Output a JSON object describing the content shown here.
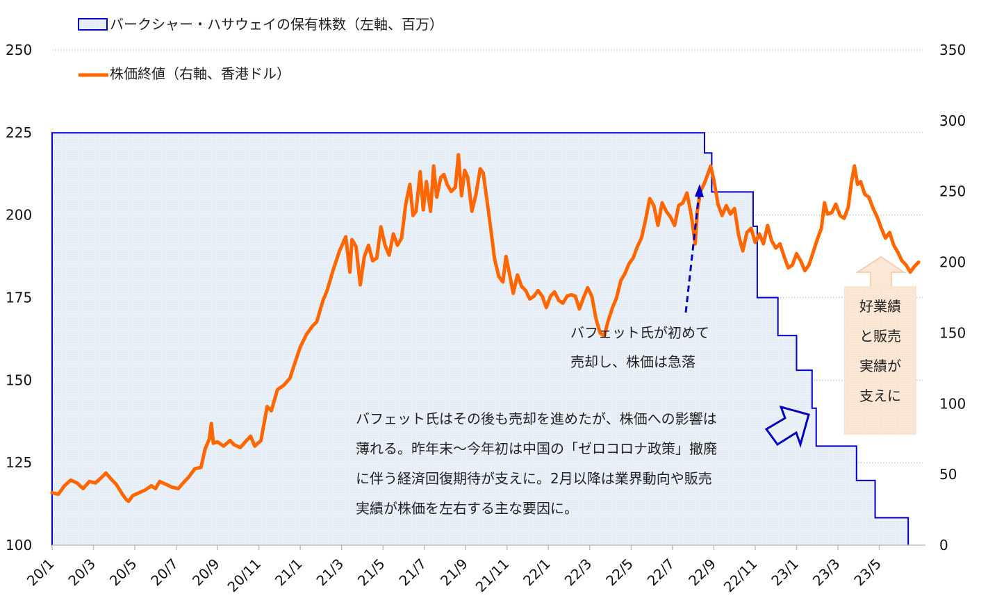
{
  "chart_data": {
    "type": "line",
    "title": "",
    "legend": [
      {
        "label": "バークシャー・ハサウェイの保有株数（左軸、百万）",
        "kind": "area-step",
        "color": "#0000c8",
        "fill": "#e9eef8"
      },
      {
        "label": "株価終値（右軸、香港ドル）",
        "kind": "line",
        "color": "#ff6600"
      }
    ],
    "legend_position": "top-left",
    "x_tick_labels": [
      "20/1",
      "20/3",
      "20/5",
      "20/7",
      "20/9",
      "20/11",
      "21/1",
      "21/3",
      "21/5",
      "21/7",
      "21/9",
      "21/11",
      "22/1",
      "22/3",
      "22/5",
      "22/7",
      "22/9",
      "22/11",
      "23/1",
      "23/3",
      "23/5"
    ],
    "x_unit": "months since 2020/1",
    "x_range": [
      0,
      42.1
    ],
    "left_axis": {
      "label": "保有株数（百万）",
      "range": [
        100,
        250
      ],
      "ticks": [
        100,
        125,
        150,
        175,
        200,
        225,
        250
      ]
    },
    "right_axis": {
      "label": "株価終値（香港ドル）",
      "range": [
        0,
        350
      ],
      "ticks": [
        0,
        50,
        100,
        150,
        200,
        250,
        300,
        350
      ]
    },
    "grid": "horizontal dotted",
    "series": [
      {
        "name": "バークシャー・ハサウェイの保有株数（左軸、百万）",
        "axis": "left",
        "type": "step-area",
        "points": [
          [
            0,
            224.9
          ],
          [
            31.55,
            224.9
          ],
          [
            31.55,
            218.8
          ],
          [
            31.9,
            218.8
          ],
          [
            31.9,
            207.0
          ],
          [
            33.9,
            207.0
          ],
          [
            33.9,
            196.6
          ],
          [
            34.1,
            196.6
          ],
          [
            34.1,
            175.0
          ],
          [
            35.1,
            175.0
          ],
          [
            35.1,
            163.5
          ],
          [
            36.0,
            163.5
          ],
          [
            36.0,
            153.0
          ],
          [
            36.75,
            153.0
          ],
          [
            36.75,
            141.5
          ],
          [
            36.95,
            141.5
          ],
          [
            36.95,
            130.0
          ],
          [
            38.9,
            130.0
          ],
          [
            38.9,
            119.6
          ],
          [
            39.8,
            119.6
          ],
          [
            39.8,
            108.3
          ],
          [
            41.4,
            108.3
          ],
          [
            41.4,
            100.0
          ]
        ]
      },
      {
        "name": "株価終値（右軸、香港ドル）",
        "axis": "right",
        "type": "line",
        "points": [
          [
            0,
            37
          ],
          [
            0.3,
            36
          ],
          [
            0.6,
            42
          ],
          [
            0.9,
            46
          ],
          [
            1.2,
            44
          ],
          [
            1.5,
            40
          ],
          [
            1.8,
            45
          ],
          [
            2.1,
            44
          ],
          [
            2.4,
            48
          ],
          [
            2.6,
            51
          ],
          [
            2.9,
            46
          ],
          [
            3.1,
            43
          ],
          [
            3.4,
            36
          ],
          [
            3.6,
            32
          ],
          [
            3.7,
            31
          ],
          [
            3.9,
            35
          ],
          [
            4.2,
            37
          ],
          [
            4.5,
            39
          ],
          [
            4.8,
            42
          ],
          [
            5.0,
            40
          ],
          [
            5.2,
            45
          ],
          [
            5.5,
            43
          ],
          [
            5.8,
            41
          ],
          [
            6.1,
            40
          ],
          [
            6.4,
            45
          ],
          [
            6.6,
            48
          ],
          [
            6.9,
            54
          ],
          [
            7.2,
            55
          ],
          [
            7.4,
            68
          ],
          [
            7.6,
            75
          ],
          [
            7.7,
            86
          ],
          [
            7.8,
            72
          ],
          [
            8.0,
            73
          ],
          [
            8.3,
            70
          ],
          [
            8.6,
            74
          ],
          [
            8.8,
            71
          ],
          [
            9.1,
            69
          ],
          [
            9.4,
            74
          ],
          [
            9.6,
            77
          ],
          [
            9.8,
            70
          ],
          [
            10.1,
            74
          ],
          [
            10.4,
            98
          ],
          [
            10.6,
            95
          ],
          [
            10.9,
            110
          ],
          [
            11.2,
            113
          ],
          [
            11.5,
            118
          ],
          [
            11.7,
            127
          ],
          [
            12.0,
            140
          ],
          [
            12.3,
            149
          ],
          [
            12.6,
            155
          ],
          [
            12.8,
            158
          ],
          [
            13.1,
            173
          ],
          [
            13.3,
            180
          ],
          [
            13.6,
            195
          ],
          [
            13.9,
            208
          ],
          [
            14.2,
            218
          ],
          [
            14.4,
            193
          ],
          [
            14.5,
            216
          ],
          [
            14.7,
            211
          ],
          [
            14.9,
            184
          ],
          [
            15.1,
            204
          ],
          [
            15.3,
            212
          ],
          [
            15.5,
            201
          ],
          [
            15.7,
            203
          ],
          [
            15.9,
            225
          ],
          [
            16.1,
            212
          ],
          [
            16.3,
            205
          ],
          [
            16.5,
            220
          ],
          [
            16.7,
            212
          ],
          [
            16.9,
            217
          ],
          [
            17.1,
            241
          ],
          [
            17.3,
            255
          ],
          [
            17.45,
            233
          ],
          [
            17.6,
            236
          ],
          [
            17.8,
            264
          ],
          [
            17.95,
            237
          ],
          [
            18.1,
            257
          ],
          [
            18.3,
            236
          ],
          [
            18.45,
            268
          ],
          [
            18.6,
            246
          ],
          [
            18.8,
            260
          ],
          [
            18.95,
            262
          ],
          [
            19.1,
            255
          ],
          [
            19.3,
            250
          ],
          [
            19.5,
            253
          ],
          [
            19.65,
            276
          ],
          [
            19.8,
            247
          ],
          [
            19.95,
            265
          ],
          [
            20.1,
            260
          ],
          [
            20.3,
            236
          ],
          [
            20.5,
            248
          ],
          [
            20.7,
            266
          ],
          [
            20.85,
            263
          ],
          [
            21.0,
            247
          ],
          [
            21.2,
            225
          ],
          [
            21.4,
            202
          ],
          [
            21.6,
            190
          ],
          [
            21.8,
            186
          ],
          [
            21.95,
            204
          ],
          [
            22.1,
            193
          ],
          [
            22.3,
            178
          ],
          [
            22.5,
            191
          ],
          [
            22.7,
            183
          ],
          [
            22.9,
            180
          ],
          [
            23.1,
            174
          ],
          [
            23.3,
            176
          ],
          [
            23.5,
            180
          ],
          [
            23.7,
            176
          ],
          [
            23.9,
            168
          ],
          [
            24.1,
            176
          ],
          [
            24.3,
            179
          ],
          [
            24.5,
            173
          ],
          [
            24.7,
            171
          ],
          [
            24.9,
            176
          ],
          [
            25.1,
            177
          ],
          [
            25.3,
            176
          ],
          [
            25.5,
            167
          ],
          [
            25.7,
            175
          ],
          [
            25.9,
            182
          ],
          [
            26.1,
            176
          ],
          [
            26.3,
            160
          ],
          [
            26.5,
            150
          ],
          [
            26.7,
            148
          ],
          [
            26.9,
            159
          ],
          [
            27.1,
            168
          ],
          [
            27.3,
            175
          ],
          [
            27.5,
            187
          ],
          [
            27.7,
            192
          ],
          [
            27.9,
            199
          ],
          [
            28.1,
            203
          ],
          [
            28.3,
            211
          ],
          [
            28.5,
            217
          ],
          [
            28.7,
            230
          ],
          [
            28.9,
            245
          ],
          [
            29.1,
            240
          ],
          [
            29.3,
            226
          ],
          [
            29.5,
            242
          ],
          [
            29.7,
            236
          ],
          [
            29.9,
            232
          ],
          [
            30.1,
            226
          ],
          [
            30.3,
            240
          ],
          [
            30.5,
            242
          ],
          [
            30.7,
            249
          ],
          [
            30.9,
            234
          ],
          [
            31.1,
            213
          ],
          [
            31.2,
            236
          ],
          [
            31.35,
            250
          ],
          [
            31.55,
            256
          ],
          [
            31.7,
            262
          ],
          [
            31.85,
            268
          ],
          [
            32.0,
            258
          ],
          [
            32.2,
            241
          ],
          [
            32.4,
            233
          ],
          [
            32.6,
            240
          ],
          [
            32.8,
            234
          ],
          [
            33.0,
            238
          ],
          [
            33.2,
            219
          ],
          [
            33.4,
            208
          ],
          [
            33.6,
            221
          ],
          [
            33.8,
            224
          ],
          [
            34.0,
            214
          ],
          [
            34.2,
            220
          ],
          [
            34.4,
            213
          ],
          [
            34.6,
            226
          ],
          [
            34.8,
            215
          ],
          [
            35.0,
            210
          ],
          [
            35.2,
            213
          ],
          [
            35.4,
            204
          ],
          [
            35.6,
            196
          ],
          [
            35.8,
            198
          ],
          [
            36.0,
            206
          ],
          [
            36.2,
            201
          ],
          [
            36.4,
            194
          ],
          [
            36.6,
            198
          ],
          [
            36.8,
            207
          ],
          [
            37.0,
            216
          ],
          [
            37.2,
            224
          ],
          [
            37.35,
            242
          ],
          [
            37.5,
            234
          ],
          [
            37.7,
            235
          ],
          [
            37.9,
            241
          ],
          [
            38.1,
            233
          ],
          [
            38.3,
            231
          ],
          [
            38.5,
            239
          ],
          [
            38.65,
            256
          ],
          [
            38.8,
            268
          ],
          [
            38.95,
            255
          ],
          [
            39.1,
            257
          ],
          [
            39.3,
            248
          ],
          [
            39.5,
            246
          ],
          [
            39.7,
            238
          ],
          [
            39.9,
            232
          ],
          [
            40.1,
            224
          ],
          [
            40.3,
            217
          ],
          [
            40.5,
            221
          ],
          [
            40.7,
            212
          ],
          [
            40.9,
            207
          ],
          [
            41.1,
            201
          ],
          [
            41.3,
            198
          ],
          [
            41.5,
            193
          ],
          [
            41.7,
            197
          ],
          [
            41.9,
            200
          ]
        ]
      }
    ],
    "annotations": [
      {
        "id": "first-sale",
        "lines": [
          "バフェット氏が初めて",
          "売却し、株価は急落"
        ]
      },
      {
        "id": "later-sales",
        "lines": [
          "バフェット氏はその後も売却を進めたが、株価への影響は",
          "薄れる。昨年末～今年初は中国の「ゼロコロナ政策」撤廃",
          "に伴う経済回復期待が支えに。2月以降は業界動向や販売",
          "実績が株価を左右する主な要因に。"
        ]
      },
      {
        "id": "earnings",
        "lines": [
          "好業績",
          "と販売",
          "実績が",
          "支えに"
        ]
      }
    ]
  }
}
